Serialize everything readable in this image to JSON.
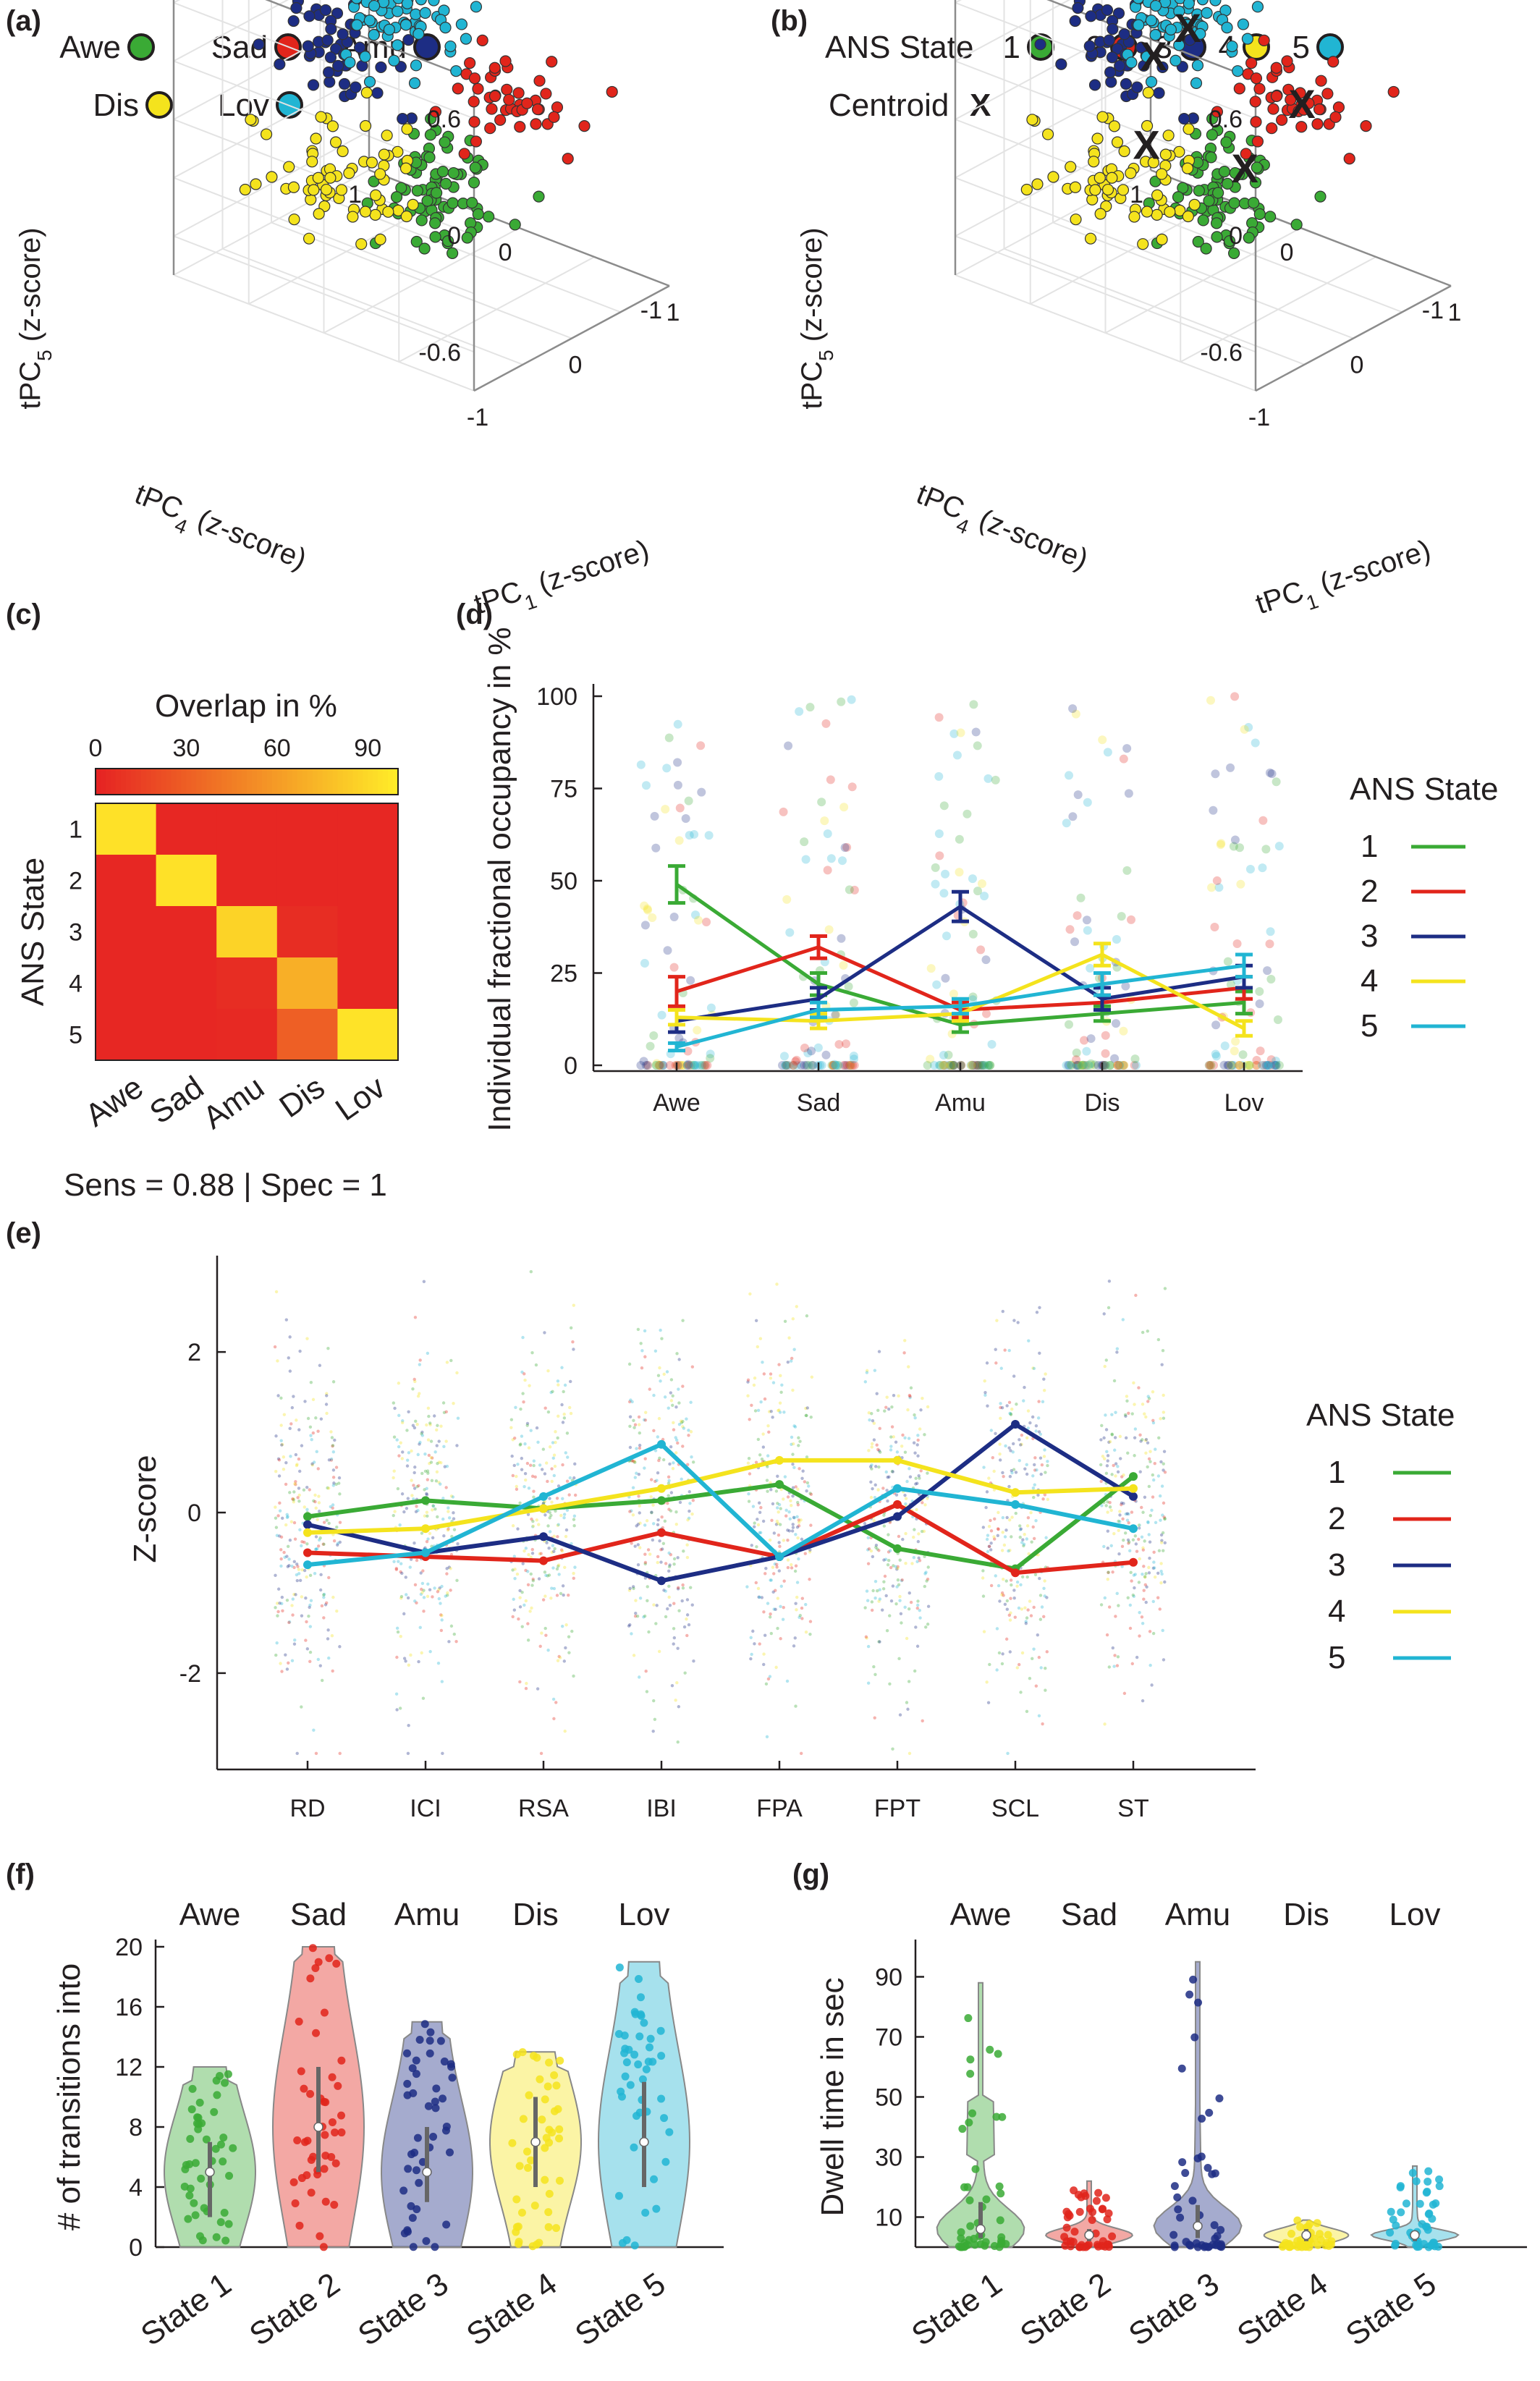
{
  "panels": {
    "a": {
      "label": "(a)"
    },
    "b": {
      "label": "(b)"
    },
    "c": {
      "label": "(c)"
    },
    "d": {
      "label": "(d)"
    },
    "e": {
      "label": "(e)"
    },
    "f": {
      "label": "(f)"
    },
    "g": {
      "label": "(g)"
    }
  },
  "colors": {
    "s1": "#3aaa35",
    "s2": "#e1251b",
    "s3": "#1d2d84",
    "s4": "#f4e31d",
    "s5": "#21b5d3",
    "x": "#231f20"
  },
  "chart_data": [
    {
      "id": "a",
      "type": "scatter",
      "legend": {
        "entries": [
          {
            "name": "Awe",
            "color": "#3aaa35"
          },
          {
            "name": "Sad",
            "color": "#e1251b"
          },
          {
            "name": "Amu",
            "color": "#1d2d84"
          },
          {
            "name": "Dis",
            "color": "#f4e31d"
          },
          {
            "name": "Lov",
            "color": "#21b5d3"
          }
        ]
      },
      "axes": {
        "x": {
          "label": "tPC",
          "subscript": "1",
          "unit": " (z-score)",
          "ticks": [
            "-1",
            "0",
            "1"
          ]
        },
        "y": {
          "label": "tPC",
          "subscript": "4",
          "unit": " (z-score)",
          "ticks": [
            "-1",
            "0",
            "1"
          ]
        },
        "z": {
          "label": "tPC",
          "subscript": "5",
          "unit": " (z-score)",
          "ticks": [
            "-0.6",
            "0",
            "0.6"
          ]
        }
      },
      "clusters": [
        {
          "name": "Awe",
          "center_z": [
            0.15,
            -0.05,
            -0.35
          ],
          "n": 80
        },
        {
          "name": "Sad",
          "center_z": [
            0.55,
            -0.25,
            0.05
          ],
          "n": 45
        },
        {
          "name": "Amu",
          "center_z": [
            -0.35,
            0.3,
            0.45
          ],
          "n": 55
        },
        {
          "name": "Dis",
          "center_z": [
            -0.45,
            0.15,
            -0.2
          ],
          "n": 60
        },
        {
          "name": "Lov",
          "center_z": [
            0.1,
            0.25,
            0.45
          ],
          "n": 70
        }
      ]
    },
    {
      "id": "b",
      "type": "scatter",
      "legend": {
        "prefix": "ANS State",
        "entries": [
          {
            "name": "1",
            "color": "#3aaa35"
          },
          {
            "name": "2",
            "color": "#e1251b"
          },
          {
            "name": "3",
            "color": "#1d2d84"
          },
          {
            "name": "4",
            "color": "#f4e31d"
          },
          {
            "name": "5",
            "color": "#21b5d3"
          }
        ],
        "centroid_label": "Centroid",
        "centroid_marker": "X"
      },
      "axes": {
        "x": {
          "label": "tPC",
          "subscript": "1",
          "unit": " (z-score)",
          "ticks": [
            "-1",
            "0",
            "1"
          ]
        },
        "y": {
          "label": "tPC",
          "subscript": "4",
          "unit": " (z-score)",
          "ticks": [
            "-1",
            "0",
            "1"
          ]
        },
        "z": {
          "label": "tPC",
          "subscript": "5",
          "unit": " (z-score)",
          "ticks": [
            "-0.6",
            "0",
            "0.6"
          ]
        }
      },
      "centroids": [
        {
          "state": "1",
          "pos": [
            0.35,
            -0.05,
            -0.3
          ]
        },
        {
          "state": "2",
          "pos": [
            0.55,
            -0.3,
            0.05
          ]
        },
        {
          "state": "3",
          "pos": [
            -0.2,
            0.2,
            0.35
          ]
        },
        {
          "state": "4",
          "pos": [
            -0.35,
            0.15,
            -0.05
          ]
        },
        {
          "state": "5",
          "pos": [
            0.15,
            0.2,
            0.4
          ]
        }
      ]
    },
    {
      "id": "c",
      "type": "heatmap",
      "colorbar": {
        "title": "Overlap in %",
        "ticks": [
          "0",
          "30",
          "60",
          "90"
        ],
        "range": [
          0,
          100
        ]
      },
      "ylabel": "ANS State",
      "rows": [
        "1",
        "2",
        "3",
        "4",
        "5"
      ],
      "cols": [
        "Awe",
        "Sad",
        "Amu",
        "Dis",
        "Lov"
      ],
      "values": [
        [
          95,
          2,
          2,
          2,
          2
        ],
        [
          2,
          95,
          2,
          2,
          2
        ],
        [
          2,
          2,
          88,
          5,
          2
        ],
        [
          2,
          2,
          5,
          70,
          2
        ],
        [
          2,
          2,
          3,
          30,
          96
        ]
      ],
      "caption": "Sens = 0.88 | Spec = 1"
    },
    {
      "id": "d",
      "type": "line",
      "ylabel": "Individual fractional occupancy  in %",
      "ylim": [
        0,
        100
      ],
      "yticks": [
        0,
        25,
        50,
        75,
        100
      ],
      "categories": [
        "Awe",
        "Sad",
        "Amu",
        "Dis",
        "Lov"
      ],
      "legend_title": "ANS State",
      "series": [
        {
          "name": "1",
          "values": [
            49,
            22,
            11,
            14,
            17
          ],
          "err": [
            5,
            3,
            2,
            2,
            3
          ]
        },
        {
          "name": "2",
          "values": [
            20,
            32,
            15,
            17,
            21
          ],
          "err": [
            4,
            3,
            2,
            2,
            3
          ]
        },
        {
          "name": "3",
          "values": [
            12,
            18,
            43,
            18,
            24
          ],
          "err": [
            3,
            3,
            4,
            3,
            3
          ]
        },
        {
          "name": "4",
          "values": [
            13,
            12,
            14,
            30,
            10
          ],
          "err": [
            2,
            2,
            2,
            3,
            2
          ]
        },
        {
          "name": "5",
          "values": [
            5,
            15,
            16,
            22,
            27
          ],
          "err": [
            1,
            2,
            2,
            3,
            3
          ]
        }
      ]
    },
    {
      "id": "e",
      "type": "line",
      "ylabel": "Z-score",
      "ylim": [
        -3.2,
        3.2
      ],
      "yticks": [
        -2,
        0,
        2
      ],
      "categories": [
        "RD",
        "ICI",
        "RSA",
        "IBI",
        "FPA",
        "FPT",
        "SCL",
        "ST"
      ],
      "legend_title": "ANS State",
      "series": [
        {
          "name": "1",
          "values": [
            -0.05,
            0.15,
            0.05,
            0.15,
            0.35,
            -0.45,
            -0.7,
            0.45
          ]
        },
        {
          "name": "2",
          "values": [
            -0.5,
            -0.55,
            -0.6,
            -0.25,
            -0.55,
            0.1,
            -0.75,
            -0.62
          ]
        },
        {
          "name": "3",
          "values": [
            -0.15,
            -0.5,
            -0.3,
            -0.85,
            -0.55,
            -0.05,
            1.1,
            0.2
          ]
        },
        {
          "name": "4",
          "values": [
            -0.25,
            -0.2,
            0.05,
            0.3,
            0.65,
            0.65,
            0.25,
            0.3
          ]
        },
        {
          "name": "5",
          "values": [
            -0.65,
            -0.5,
            0.2,
            0.85,
            -0.55,
            0.3,
            0.1,
            -0.2
          ]
        }
      ]
    },
    {
      "id": "f",
      "type": "violin",
      "ylabel": "# of transitions into",
      "ylim": [
        0,
        20
      ],
      "yticks": [
        0,
        4,
        8,
        12,
        16,
        20
      ],
      "top_labels": [
        "Awe",
        "Sad",
        "Amu",
        "Dis",
        "Lov"
      ],
      "categories": [
        "State 1",
        "State 2",
        "State 3",
        "State 4",
        "State 5"
      ],
      "violins": [
        {
          "min": 0,
          "max": 12,
          "q1": 2,
          "median": 5,
          "q3": 7
        },
        {
          "min": 0,
          "max": 20,
          "q1": 5,
          "median": 8,
          "q3": 12
        },
        {
          "min": 0,
          "max": 15,
          "q1": 3,
          "median": 5,
          "q3": 8
        },
        {
          "min": 0,
          "max": 13,
          "q1": 4,
          "median": 7,
          "q3": 10
        },
        {
          "min": 0,
          "max": 19,
          "q1": 4,
          "median": 7,
          "q3": 11
        }
      ]
    },
    {
      "id": "g",
      "type": "violin",
      "ylabel": "Dwell time in sec",
      "ylim": [
        0,
        100
      ],
      "yticks": [
        10,
        30,
        50,
        70,
        90
      ],
      "top_labels": [
        "Awe",
        "Sad",
        "Amu",
        "Dis",
        "Lov"
      ],
      "categories": [
        "State 1",
        "State 2",
        "State 3",
        "State 4",
        "State 5"
      ],
      "violins": [
        {
          "min": 0,
          "max": 88,
          "q1": 3,
          "median": 6,
          "q3": 15
        },
        {
          "min": 0,
          "max": 22,
          "q1": 2,
          "median": 4,
          "q3": 6
        },
        {
          "min": 0,
          "max": 95,
          "q1": 3,
          "median": 7,
          "q3": 14
        },
        {
          "min": 0,
          "max": 9,
          "q1": 2,
          "median": 4,
          "q3": 6
        },
        {
          "min": 0,
          "max": 27,
          "q1": 2,
          "median": 4,
          "q3": 5
        }
      ]
    }
  ]
}
